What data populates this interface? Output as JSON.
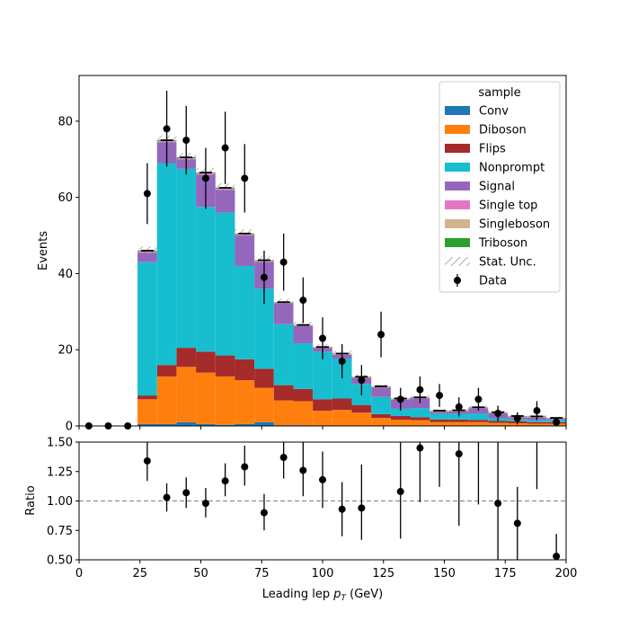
{
  "chart_data": {
    "type": "bar",
    "stacked": true,
    "bin_edges": [
      0,
      8,
      16,
      24,
      32,
      40,
      48,
      56,
      64,
      72,
      80,
      88,
      96,
      104,
      112,
      120,
      128,
      136,
      144,
      152,
      160,
      168,
      176,
      184,
      192,
      200
    ],
    "xlabel": "Leading lep",
    "xlabel_sym": "p",
    "xlabel_sub": "T",
    "xlabel_unit": "(GeV)",
    "xlim": [
      0,
      200
    ],
    "xticks": [
      0,
      25,
      50,
      75,
      100,
      125,
      150,
      175,
      200
    ],
    "top_panel": {
      "ylabel": "Events",
      "ylim": [
        0,
        92
      ],
      "yticks": [
        0,
        20,
        40,
        60,
        80
      ]
    },
    "ratio_panel": {
      "ylabel": "Ratio",
      "ylim": [
        0.5,
        1.5
      ],
      "yticks": [
        "0.50",
        "0.75",
        "1.00",
        "1.25",
        "1.50"
      ],
      "reference_line": 1.0
    },
    "legend": {
      "title": "sample",
      "position": "top-right"
    },
    "series": [
      {
        "name": "Conv",
        "color": "#1f77b4",
        "values": [
          0,
          0,
          0,
          0.5,
          0.5,
          1,
          0.5,
          0.3,
          0.5,
          1,
          0.2,
          0.2,
          0.1,
          0.1,
          0.1,
          0.1,
          0,
          0,
          0,
          0,
          0,
          0,
          0,
          0,
          0
        ]
      },
      {
        "name": "Diboson",
        "color": "#ff7f0e",
        "values": [
          0,
          0,
          0,
          6.5,
          12.5,
          14.5,
          13.5,
          12.7,
          11.5,
          9,
          6.5,
          6.3,
          3.9,
          4.1,
          3.4,
          2,
          1.6,
          1.5,
          1,
          1,
          1,
          0.8,
          0.7,
          0.6,
          0.6
        ]
      },
      {
        "name": "Flips",
        "color": "#a52a2a",
        "values": [
          0,
          0,
          0,
          1,
          3,
          5,
          5.5,
          5.5,
          5.5,
          5,
          4,
          3.2,
          3,
          3,
          2,
          1,
          1,
          0.8,
          0.7,
          0.7,
          0.6,
          0.5,
          0.5,
          0.4,
          0.4
        ]
      },
      {
        "name": "Nonprompt",
        "color": "#17becf",
        "values": [
          0,
          0,
          0,
          35,
          53,
          47,
          38,
          37.5,
          24.5,
          21,
          16,
          12,
          12.5,
          10.5,
          5.5,
          4.5,
          1.9,
          2.4,
          1.5,
          1.5,
          1.6,
          0.7,
          0.5,
          0.5,
          0.5
        ]
      },
      {
        "name": "Signal",
        "color": "#9467bd",
        "values": [
          0,
          0,
          0,
          2.5,
          5.5,
          2.5,
          8.5,
          6,
          8,
          7,
          5.5,
          4.5,
          0.9,
          1,
          1.6,
          2.5,
          2.4,
          2.5,
          0.5,
          0.6,
          1.4,
          1.3,
          0.6,
          0.7,
          0.3
        ]
      },
      {
        "name": "Single top",
        "color": "#e377c2",
        "values": [
          0,
          0,
          0,
          0.2,
          0.2,
          0.2,
          0.2,
          0.2,
          0.2,
          0.2,
          0.1,
          0.1,
          0.1,
          0.1,
          0.1,
          0.1,
          0.1,
          0.1,
          0.1,
          0.1,
          0.1,
          0.1,
          0.1,
          0.1,
          0.1
        ]
      },
      {
        "name": "Singleboson",
        "color": "#d2b48c",
        "values": [
          0,
          0,
          0,
          0.1,
          0.1,
          0.1,
          0.1,
          0.1,
          0.1,
          0.1,
          0.1,
          0.1,
          0.1,
          0.1,
          0.1,
          0.1,
          0.1,
          0.1,
          0.1,
          0.1,
          0.1,
          0.1,
          0.1,
          0.1,
          0.1
        ]
      },
      {
        "name": "Triboson",
        "color": "#2ca02c",
        "values": [
          0,
          0,
          0,
          0.2,
          0.2,
          0.2,
          0.2,
          0.2,
          0.2,
          0.2,
          0.1,
          0.1,
          0.1,
          0.1,
          0.1,
          0.1,
          0.1,
          0.1,
          0.1,
          0.1,
          0.1,
          0.1,
          0.1,
          0.1,
          0.1
        ]
      }
    ],
    "uncertainty": {
      "name": "Stat. Unc.",
      "values": [
        0,
        0,
        0,
        1.1,
        1.3,
        1.2,
        1.2,
        1.2,
        1.1,
        1.0,
        0.9,
        0.8,
        0.7,
        0.7,
        0.6,
        0.5,
        0.5,
        0.5,
        0.4,
        0.4,
        0.4,
        0.3,
        0.3,
        0.3,
        0.3
      ]
    },
    "data": {
      "name": "Data",
      "color": "#000000",
      "values": [
        0,
        0,
        0,
        61,
        78,
        75,
        65,
        73,
        65,
        39,
        43,
        33,
        23,
        17,
        12,
        24,
        7,
        9.5,
        8,
        5,
        7,
        3.3,
        2,
        4,
        1
      ],
      "errors": [
        0.5,
        0.5,
        0.5,
        8,
        10,
        9,
        8,
        9.5,
        9,
        7,
        7.5,
        6,
        5.5,
        4.5,
        4,
        6,
        3,
        3.5,
        3,
        2.5,
        3,
        2,
        1.6,
        2.5,
        1.2
      ]
    },
    "ratio": {
      "x_centers": [
        28,
        36,
        44,
        52,
        60,
        68,
        76,
        84,
        92,
        100,
        108,
        116,
        132,
        140,
        148,
        156,
        164,
        172,
        180,
        188,
        196
      ],
      "values": [
        1.34,
        1.03,
        1.07,
        0.98,
        1.17,
        1.29,
        0.9,
        1.37,
        1.26,
        1.18,
        0.93,
        0.94,
        1.08,
        1.45,
        null,
        1.4,
        null,
        0.98,
        0.81,
        null,
        0.53
      ],
      "low": [
        1.17,
        0.91,
        0.94,
        0.86,
        1.04,
        1.13,
        0.75,
        1.19,
        1.04,
        0.94,
        0.7,
        0.67,
        0.68,
        0.99,
        1.12,
        0.79,
        0.97,
        0.5,
        0.5,
        1.1,
        0.5
      ],
      "high": [
        1.5,
        1.15,
        1.2,
        1.11,
        1.32,
        1.47,
        1.06,
        1.5,
        1.5,
        1.42,
        1.16,
        1.31,
        1.5,
        1.5,
        1.5,
        1.5,
        1.5,
        1.5,
        1.12,
        1.5,
        0.72
      ]
    }
  }
}
